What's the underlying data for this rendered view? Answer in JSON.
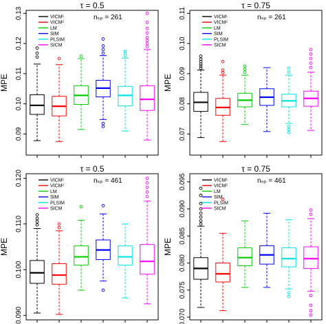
{
  "chart_data": [
    {
      "type": "box",
      "title": "τ = 0.5",
      "ylabel": "MPE",
      "annotation": "nₛₚ = 261",
      "ylim": [
        0.083,
        0.131
      ],
      "yticks": [
        0.09,
        0.1,
        0.11,
        0.12,
        0.13
      ],
      "ytick_labels": [
        "0.09",
        "0.10",
        "0.11",
        "0.12",
        "0.13"
      ],
      "legend": [
        "VICM¹",
        "VICM²",
        "LM",
        "SIM",
        "PLSIM",
        "SICM"
      ],
      "legend_position": "top-left",
      "series": [
        {
          "name": "VICM¹",
          "color": "#000000",
          "whisker_low": 0.0878,
          "q1": 0.0965,
          "median": 0.0995,
          "q3": 0.103,
          "whisker_high": 0.1132,
          "outliers": [
            0.1155,
            0.1168,
            0.1185
          ]
        },
        {
          "name": "VICM²",
          "color": "#ff0000",
          "whisker_low": 0.0875,
          "q1": 0.096,
          "median": 0.0992,
          "q3": 0.1025,
          "whisker_high": 0.113,
          "outliers": [
            0.115
          ]
        },
        {
          "name": "LM",
          "color": "#00cc00",
          "whisker_low": 0.0915,
          "q1": 0.0998,
          "median": 0.1028,
          "q3": 0.106,
          "whisker_high": 0.115,
          "outliers": [
            0.1158
          ]
        },
        {
          "name": "SIM",
          "color": "#0000ff",
          "whisker_low": 0.0948,
          "q1": 0.1023,
          "median": 0.1052,
          "q3": 0.1078,
          "whisker_high": 0.116,
          "outliers": [
            0.0935,
            0.0925,
            0.1168,
            0.118,
            0.1192,
            0.1215
          ]
        },
        {
          "name": "PLSIM",
          "color": "#00e5e5",
          "whisker_low": 0.091,
          "q1": 0.0993,
          "median": 0.1028,
          "q3": 0.1058,
          "whisker_high": 0.1152,
          "outliers": [
            0.116,
            0.1168,
            0.1175
          ]
        },
        {
          "name": "SICM",
          "color": "#ff00ff",
          "whisker_low": 0.088,
          "q1": 0.0978,
          "median": 0.1015,
          "q3": 0.106,
          "whisker_high": 0.118,
          "outliers": [
            0.119,
            0.12,
            0.121,
            0.122,
            0.1235,
            0.125,
            0.127,
            0.13
          ]
        }
      ]
    },
    {
      "type": "box",
      "title": "τ = 0.75",
      "ylabel": "MPE",
      "annotation": "nₛₚ = 261",
      "ylim": [
        0.063,
        0.111
      ],
      "yticks": [
        0.07,
        0.08,
        0.09,
        0.1,
        0.11
      ],
      "ytick_labels": [
        "0.07",
        "0.08",
        "0.09",
        "0.10",
        "0.11"
      ],
      "legend": [
        "VICM¹",
        "VICM²",
        "LM",
        "SIM",
        "PLSIM",
        "SICM"
      ],
      "legend_position": "top-left",
      "series": [
        {
          "name": "VICM¹",
          "color": "#000000",
          "whisker_low": 0.0688,
          "q1": 0.0775,
          "median": 0.0805,
          "q3": 0.0838,
          "whisker_high": 0.0912,
          "outliers": [
            0.0918,
            0.0925,
            0.0932,
            0.094,
            0.0948,
            0.0958
          ]
        },
        {
          "name": "VICM²",
          "color": "#ff0000",
          "whisker_low": 0.0675,
          "q1": 0.0762,
          "median": 0.0788,
          "q3": 0.0818,
          "whisker_high": 0.0895,
          "outliers": [
            0.0903,
            0.0912,
            0.094
          ]
        },
        {
          "name": "LM",
          "color": "#00cc00",
          "whisker_low": 0.0732,
          "q1": 0.079,
          "median": 0.0812,
          "q3": 0.0835,
          "whisker_high": 0.0895,
          "outliers": [
            0.0905,
            0.0915,
            0.0925
          ]
        },
        {
          "name": "SIM",
          "color": "#0000ff",
          "whisker_low": 0.0708,
          "q1": 0.0795,
          "median": 0.0822,
          "q3": 0.085,
          "whisker_high": 0.092,
          "outliers": []
        },
        {
          "name": "PLSIM",
          "color": "#00e5e5",
          "whisker_low": 0.0735,
          "q1": 0.079,
          "median": 0.081,
          "q3": 0.0832,
          "whisker_high": 0.0895,
          "outliers": [
            0.0905,
            0.0918,
            0.0725,
            0.0715,
            0.0705
          ]
        },
        {
          "name": "SICM",
          "color": "#ff00ff",
          "whisker_low": 0.0712,
          "q1": 0.0792,
          "median": 0.0818,
          "q3": 0.0842,
          "whisker_high": 0.0905,
          "outliers": [
            0.092,
            0.0935,
            0.095,
            0.0965,
            0.098
          ]
        }
      ]
    },
    {
      "type": "box",
      "title": "τ = 0.5",
      "ylabel": "MPE",
      "annotation": "nₛₚ = 461",
      "ylim": [
        0.089,
        0.121
      ],
      "yticks": [
        0.09,
        0.1,
        0.11,
        0.12
      ],
      "ytick_labels": [
        "0.090",
        "0.100",
        "0.110",
        "0.120"
      ],
      "legend": [
        "VICM¹",
        "VICM²",
        "LM",
        "SIM",
        "PLSIM",
        "SICM"
      ],
      "legend_position": "top-left",
      "series": [
        {
          "name": "VICM¹",
          "color": "#000000",
          "whisker_low": 0.0905,
          "q1": 0.097,
          "median": 0.0993,
          "q3": 0.102,
          "whisker_high": 0.109,
          "outliers": [
            0.1098,
            0.1105,
            0.1112,
            0.112
          ]
        },
        {
          "name": "VICM²",
          "color": "#ff0000",
          "whisker_low": 0.0902,
          "q1": 0.0968,
          "median": 0.0988,
          "q3": 0.1013,
          "whisker_high": 0.1085,
          "outliers": [
            0.1092,
            0.11
          ]
        },
        {
          "name": "LM",
          "color": "#00cc00",
          "whisker_low": 0.0955,
          "q1": 0.101,
          "median": 0.1028,
          "q3": 0.1052,
          "whisker_high": 0.1108,
          "outliers": [
            0.1138
          ]
        },
        {
          "name": "SIM",
          "color": "#0000ff",
          "whisker_low": 0.0975,
          "q1": 0.1022,
          "median": 0.1043,
          "q3": 0.1065,
          "whisker_high": 0.1122,
          "outliers": [
            0.0955,
            0.114
          ]
        },
        {
          "name": "PLSIM",
          "color": "#00e5e5",
          "whisker_low": 0.0938,
          "q1": 0.101,
          "median": 0.1028,
          "q3": 0.1052,
          "whisker_high": 0.11,
          "outliers": []
        },
        {
          "name": "SICM",
          "color": "#ff00ff",
          "whisker_low": 0.0925,
          "q1": 0.099,
          "median": 0.1018,
          "q3": 0.1055,
          "whisker_high": 0.115,
          "outliers": [
            0.116,
            0.117,
            0.118,
            0.119,
            0.12
          ]
        }
      ]
    },
    {
      "type": "box",
      "title": "τ = 0.75",
      "ylabel": "MPE",
      "annotation": "nₛₚ = 461",
      "ylim": [
        0.0695,
        0.0965
      ],
      "yticks": [
        0.07,
        0.075,
        0.08,
        0.085,
        0.09,
        0.095
      ],
      "ytick_labels": [
        "0.070",
        "0.075",
        "0.080",
        "0.085",
        "0.090",
        "0.095"
      ],
      "legend": [
        "VICM¹",
        "VICM²",
        "LM",
        "SIM",
        "PLSIM",
        "SICM"
      ],
      "legend_position": "top-left",
      "series": [
        {
          "name": "VICM¹",
          "color": "#000000",
          "whisker_low": 0.0718,
          "q1": 0.077,
          "median": 0.079,
          "q3": 0.081,
          "whisker_high": 0.0868,
          "outliers": [
            0.0872,
            0.0878,
            0.0885,
            0.0892,
            0.09,
            0.091,
            0.0925,
            0.0938
          ]
        },
        {
          "name": "VICM²",
          "color": "#ff0000",
          "whisker_low": 0.0712,
          "q1": 0.0765,
          "median": 0.078,
          "q3": 0.08,
          "whisker_high": 0.0855,
          "outliers": [
            0.0918
          ]
        },
        {
          "name": "LM",
          "color": "#00cc00",
          "whisker_low": 0.0755,
          "q1": 0.0795,
          "median": 0.081,
          "q3": 0.0828,
          "whisker_high": 0.0878,
          "outliers": []
        },
        {
          "name": "SIM",
          "color": "#0000ff",
          "whisker_low": 0.0755,
          "q1": 0.0798,
          "median": 0.0815,
          "q3": 0.0832,
          "whisker_high": 0.0892,
          "outliers": []
        },
        {
          "name": "PLSIM",
          "color": "#00e5e5",
          "whisker_low": 0.0752,
          "q1": 0.0793,
          "median": 0.0808,
          "q3": 0.0828,
          "whisker_high": 0.088,
          "outliers": [
            0.0745,
            0.0738
          ]
        },
        {
          "name": "SICM",
          "color": "#ff00ff",
          "whisker_low": 0.0748,
          "q1": 0.079,
          "median": 0.0808,
          "q3": 0.083,
          "whisker_high": 0.0882,
          "outliers": [
            0.074,
            0.0722,
            0.0712,
            0.0704,
            0.089,
            0.0898
          ]
        }
      ]
    }
  ]
}
